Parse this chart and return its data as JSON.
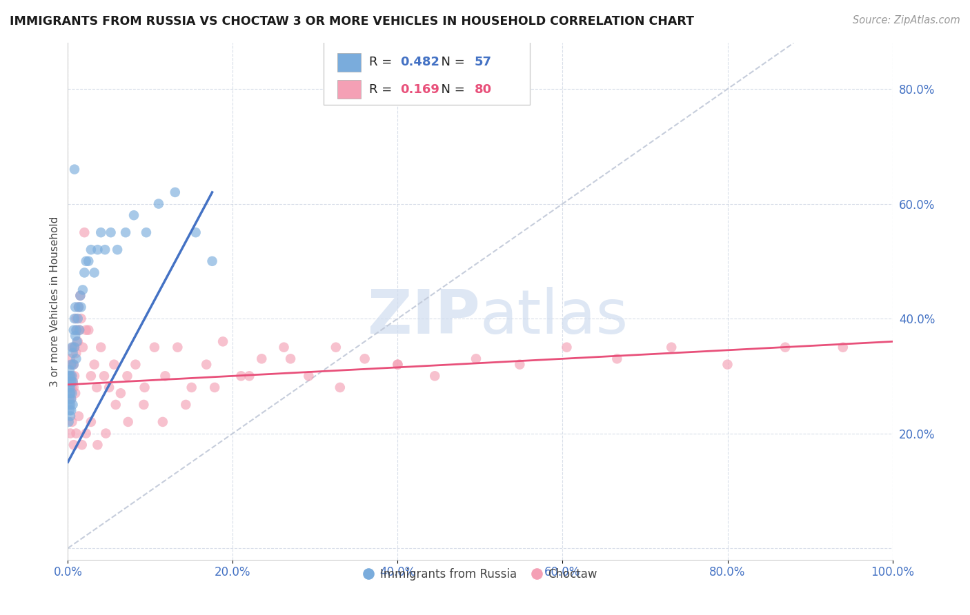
{
  "title": "IMMIGRANTS FROM RUSSIA VS CHOCTAW 3 OR MORE VEHICLES IN HOUSEHOLD CORRELATION CHART",
  "source": "Source: ZipAtlas.com",
  "ylabel": "3 or more Vehicles in Household",
  "xlim": [
    0.0,
    1.0
  ],
  "ylim": [
    -0.02,
    0.88
  ],
  "xticks": [
    0.0,
    0.2,
    0.4,
    0.6,
    0.8,
    1.0
  ],
  "yticks": [
    0.0,
    0.2,
    0.4,
    0.6,
    0.8
  ],
  "legend_russia_r": "0.482",
  "legend_russia_n": "57",
  "legend_choctaw_r": "0.169",
  "legend_choctaw_n": "80",
  "russia_color": "#7aacdc",
  "choctaw_color": "#f4a0b5",
  "russia_line_color": "#4472c4",
  "choctaw_line_color": "#e8507a",
  "diagonal_color": "#c0c8d8",
  "tick_color": "#4472c4",
  "russia_x": [
    0.001,
    0.001,
    0.001,
    0.001,
    0.002,
    0.002,
    0.002,
    0.002,
    0.002,
    0.003,
    0.003,
    0.003,
    0.003,
    0.003,
    0.004,
    0.004,
    0.004,
    0.004,
    0.005,
    0.005,
    0.005,
    0.006,
    0.006,
    0.006,
    0.007,
    0.007,
    0.008,
    0.008,
    0.009,
    0.009,
    0.01,
    0.01,
    0.011,
    0.012,
    0.013,
    0.014,
    0.015,
    0.016,
    0.018,
    0.02,
    0.022,
    0.025,
    0.028,
    0.032,
    0.036,
    0.04,
    0.045,
    0.052,
    0.06,
    0.07,
    0.08,
    0.095,
    0.11,
    0.13,
    0.155,
    0.175,
    0.008
  ],
  "russia_y": [
    0.28,
    0.3,
    0.25,
    0.22,
    0.29,
    0.31,
    0.27,
    0.24,
    0.26,
    0.3,
    0.28,
    0.25,
    0.23,
    0.27,
    0.32,
    0.29,
    0.26,
    0.24,
    0.35,
    0.3,
    0.27,
    0.34,
    0.29,
    0.25,
    0.38,
    0.32,
    0.4,
    0.35,
    0.42,
    0.37,
    0.38,
    0.33,
    0.36,
    0.4,
    0.42,
    0.38,
    0.44,
    0.42,
    0.45,
    0.48,
    0.5,
    0.5,
    0.52,
    0.48,
    0.52,
    0.55,
    0.52,
    0.55,
    0.52,
    0.55,
    0.58,
    0.55,
    0.6,
    0.62,
    0.55,
    0.5,
    0.66
  ],
  "choctaw_x": [
    0.001,
    0.002,
    0.003,
    0.003,
    0.004,
    0.004,
    0.005,
    0.005,
    0.006,
    0.006,
    0.007,
    0.007,
    0.008,
    0.008,
    0.009,
    0.01,
    0.01,
    0.011,
    0.012,
    0.013,
    0.014,
    0.015,
    0.016,
    0.018,
    0.02,
    0.022,
    0.025,
    0.028,
    0.032,
    0.035,
    0.04,
    0.044,
    0.05,
    0.056,
    0.064,
    0.072,
    0.082,
    0.093,
    0.105,
    0.118,
    0.133,
    0.15,
    0.168,
    0.188,
    0.21,
    0.235,
    0.262,
    0.292,
    0.325,
    0.36,
    0.4,
    0.445,
    0.495,
    0.548,
    0.605,
    0.666,
    0.732,
    0.8,
    0.87,
    0.94,
    0.003,
    0.005,
    0.007,
    0.01,
    0.013,
    0.017,
    0.022,
    0.028,
    0.036,
    0.046,
    0.058,
    0.073,
    0.092,
    0.115,
    0.143,
    0.178,
    0.22,
    0.27,
    0.33,
    0.4
  ],
  "choctaw_y": [
    0.28,
    0.3,
    0.33,
    0.27,
    0.3,
    0.26,
    0.32,
    0.28,
    0.35,
    0.29,
    0.32,
    0.28,
    0.35,
    0.3,
    0.27,
    0.4,
    0.34,
    0.38,
    0.36,
    0.42,
    0.38,
    0.44,
    0.4,
    0.35,
    0.55,
    0.38,
    0.38,
    0.3,
    0.32,
    0.28,
    0.35,
    0.3,
    0.28,
    0.32,
    0.27,
    0.3,
    0.32,
    0.28,
    0.35,
    0.3,
    0.35,
    0.28,
    0.32,
    0.36,
    0.3,
    0.33,
    0.35,
    0.3,
    0.35,
    0.33,
    0.32,
    0.3,
    0.33,
    0.32,
    0.35,
    0.33,
    0.35,
    0.32,
    0.35,
    0.35,
    0.2,
    0.22,
    0.18,
    0.2,
    0.23,
    0.18,
    0.2,
    0.22,
    0.18,
    0.2,
    0.25,
    0.22,
    0.25,
    0.22,
    0.25,
    0.28,
    0.3,
    0.33,
    0.28,
    0.32
  ],
  "russia_line_x": [
    0.0,
    0.175
  ],
  "russia_line_y": [
    0.15,
    0.62
  ],
  "choctaw_line_x": [
    0.0,
    1.0
  ],
  "choctaw_line_y": [
    0.285,
    0.36
  ]
}
